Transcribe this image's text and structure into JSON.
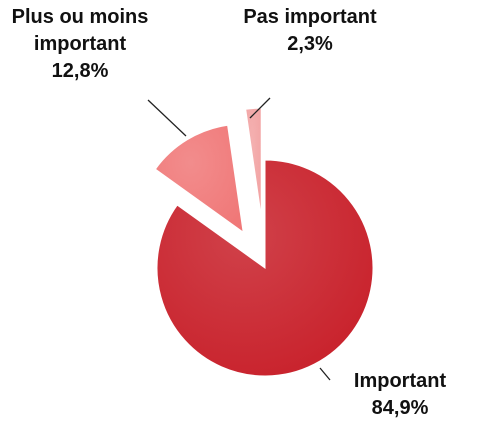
{
  "chart_data": {
    "type": "pie",
    "categories": [
      "Important",
      "Plus ou moins important",
      "Pas important"
    ],
    "values": [
      84.9,
      12.8,
      2.3
    ],
    "value_labels": [
      "84,9%",
      "12,8%",
      "2,3%"
    ],
    "colors": [
      "#c8202a",
      "#f07878",
      "#f2a3a3"
    ]
  }
}
